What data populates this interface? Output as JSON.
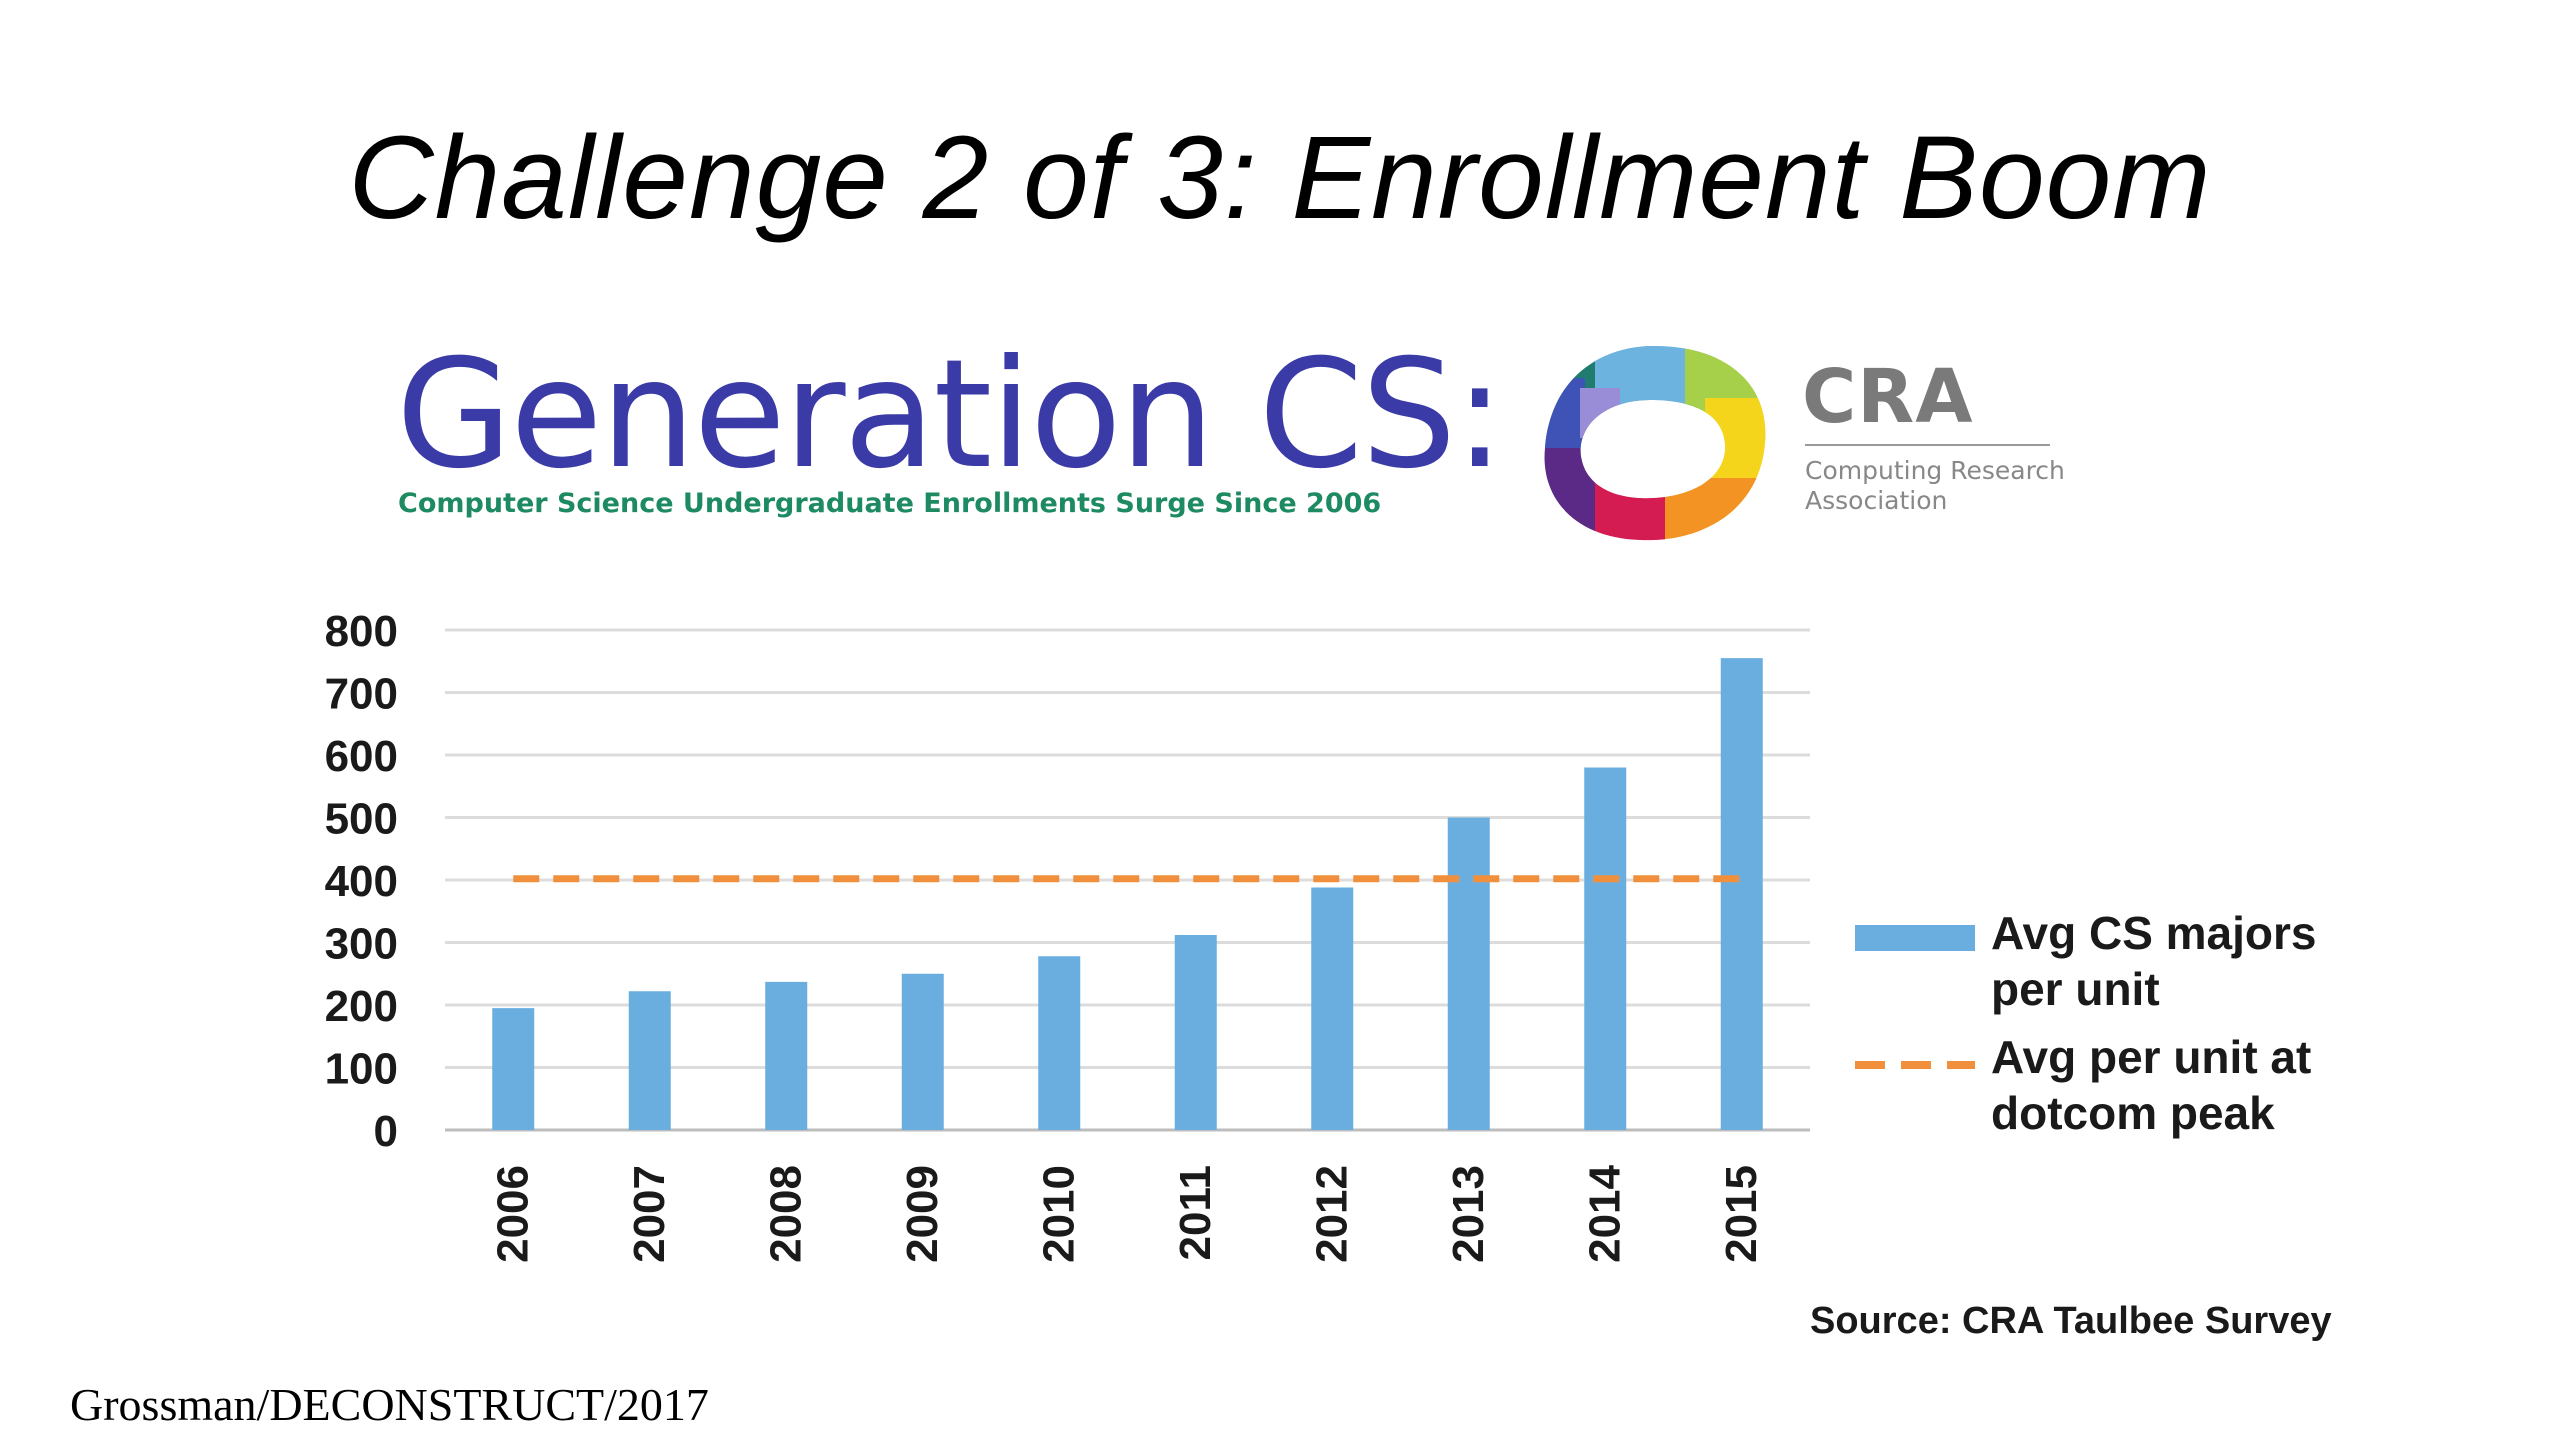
{
  "slide": {
    "title": "Challenge 2 of 3: Enrollment Boom",
    "footer": "Grossman/DECONSTRUCT/2017"
  },
  "banner": {
    "title": "Generation CS:",
    "subtitle": "Computer Science Undergraduate Enrollments Surge Since 2006"
  },
  "logo": {
    "name": "CRA",
    "full_name": "Computing Research Association",
    "icon": "cra-ring-logo-icon"
  },
  "chart_data": {
    "type": "bar",
    "categories": [
      "2006",
      "2007",
      "2008",
      "2009",
      "2010",
      "2011",
      "2012",
      "2013",
      "2014",
      "2015"
    ],
    "series": [
      {
        "name": "Avg CS majors per unit",
        "type": "bar",
        "color": "#6aaee0",
        "values": [
          195,
          222,
          237,
          250,
          278,
          312,
          388,
          500,
          580,
          755
        ]
      },
      {
        "name": "Avg per unit at dotcom peak",
        "type": "dashed-line",
        "color": "#f0903c",
        "values": [
          402,
          402,
          402,
          402,
          402,
          402,
          402,
          402,
          402,
          402
        ]
      }
    ],
    "yticks": [
      0,
      100,
      200,
      300,
      400,
      500,
      600,
      700,
      800
    ],
    "ylim": [
      0,
      800
    ],
    "grid": true,
    "legend_position": "right",
    "source": "Source: CRA Taulbee Survey"
  }
}
